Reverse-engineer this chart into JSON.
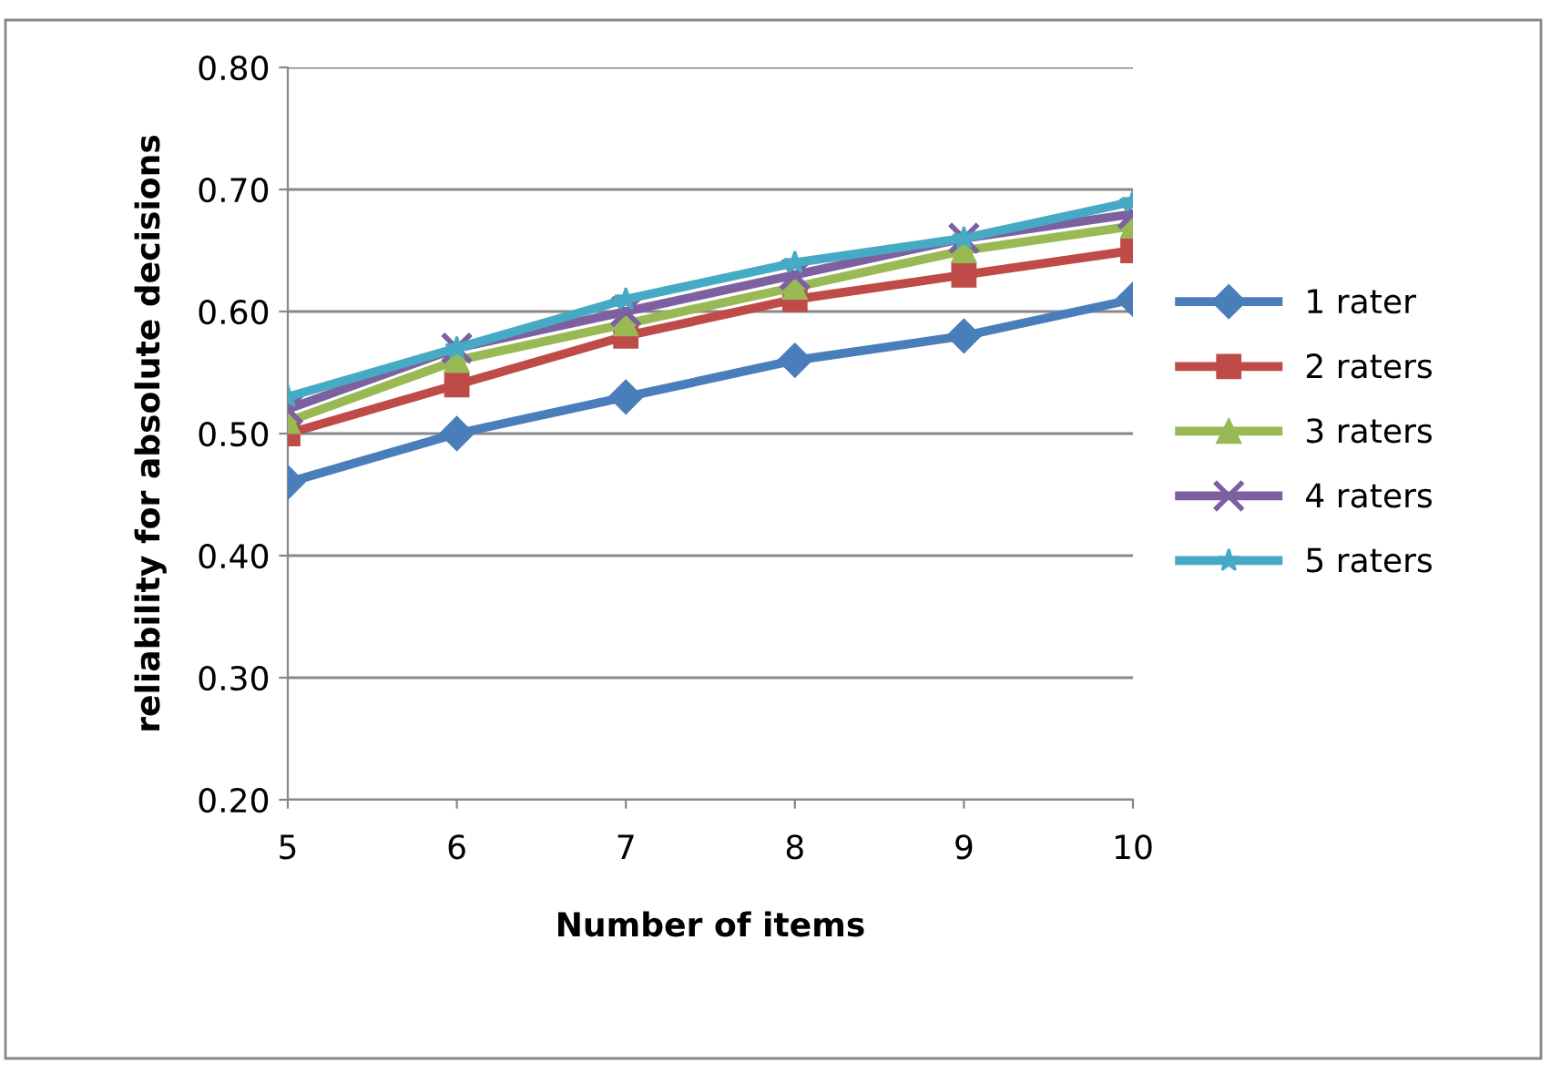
{
  "chart_data": {
    "type": "line",
    "xlabel": "Number of items",
    "ylabel": "reliability for absolute decisions",
    "categories": [
      "5",
      "6",
      "7",
      "8",
      "9",
      "10"
    ],
    "series": [
      {
        "name": "1 rater",
        "color": "#4a7ebb",
        "marker": "diamond",
        "values": [
          0.46,
          0.5,
          0.53,
          0.56,
          0.58,
          0.61
        ]
      },
      {
        "name": "2 raters",
        "color": "#be4b48",
        "marker": "square",
        "values": [
          0.5,
          0.54,
          0.58,
          0.61,
          0.63,
          0.65
        ]
      },
      {
        "name": "3 raters",
        "color": "#98b954",
        "marker": "triangle",
        "values": [
          0.51,
          0.56,
          0.59,
          0.62,
          0.65,
          0.67
        ]
      },
      {
        "name": "4 raters",
        "color": "#7d60a0",
        "marker": "cross",
        "values": [
          0.52,
          0.57,
          0.6,
          0.63,
          0.66,
          0.68
        ]
      },
      {
        "name": "5 raters",
        "color": "#46aac5",
        "marker": "star",
        "values": [
          0.53,
          0.57,
          0.61,
          0.64,
          0.66,
          0.69
        ]
      }
    ],
    "ylim": [
      0.2,
      0.8
    ],
    "yticks": [
      {
        "value": 0.2,
        "label": "0.20"
      },
      {
        "value": 0.3,
        "label": "0.30"
      },
      {
        "value": 0.4,
        "label": "0.40"
      },
      {
        "value": 0.5,
        "label": "0.50"
      },
      {
        "value": 0.6,
        "label": "0.60"
      },
      {
        "value": 0.7,
        "label": "0.70"
      },
      {
        "value": 0.8,
        "label": "0.80"
      }
    ],
    "grid": "y",
    "legend": "right",
    "line_style": "solid"
  }
}
